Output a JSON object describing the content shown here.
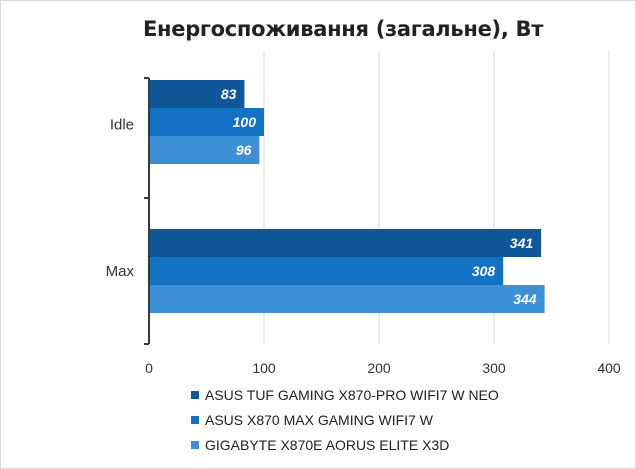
{
  "chart_data": {
    "type": "bar",
    "orientation": "horizontal",
    "title": "Енергоспоживання (загальне), Вт",
    "categories": [
      "Idle",
      "Max"
    ],
    "series": [
      {
        "name": "ASUS TUF GAMING X870-PRO WIFI7 W NEO",
        "values": [
          83,
          341
        ],
        "color": "#0f5799"
      },
      {
        "name": "ASUS X870 MAX GAMING WIFI7 W",
        "values": [
          100,
          308
        ],
        "color": "#1472c4"
      },
      {
        "name": "GIGABYTE X870E AORUS ELITE X3D",
        "values": [
          96,
          344
        ],
        "color": "#3e90d6"
      }
    ],
    "xlim": [
      0,
      400
    ],
    "xticks": [
      0,
      100,
      200,
      300,
      400
    ],
    "grid": true,
    "legend_position": "bottom",
    "data_labels": true
  }
}
